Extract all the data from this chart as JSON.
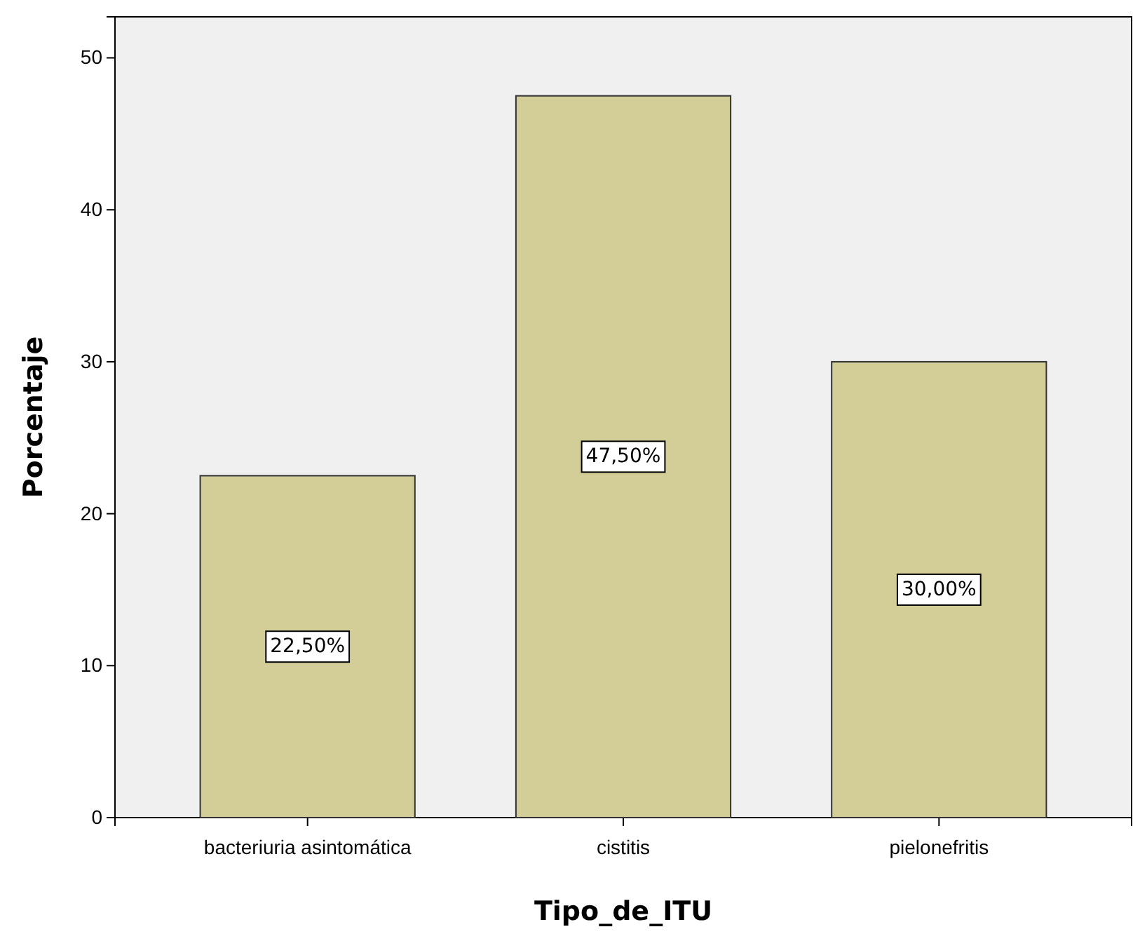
{
  "chart_data": {
    "type": "bar",
    "xlabel": "Tipo_de_ITU",
    "ylabel": "Porcentaje",
    "categories": [
      "bacteriuria asintomática",
      "cistitis",
      "pielonefritis"
    ],
    "values": [
      22.5,
      47.5,
      30
    ],
    "value_labels": [
      "22,50%",
      "47,50%",
      "30,00%"
    ],
    "color": "#d3ce98",
    "ylim": [
      0,
      52.7
    ],
    "yticks": [
      0,
      10,
      20,
      30,
      40,
      50
    ],
    "grid": false
  }
}
